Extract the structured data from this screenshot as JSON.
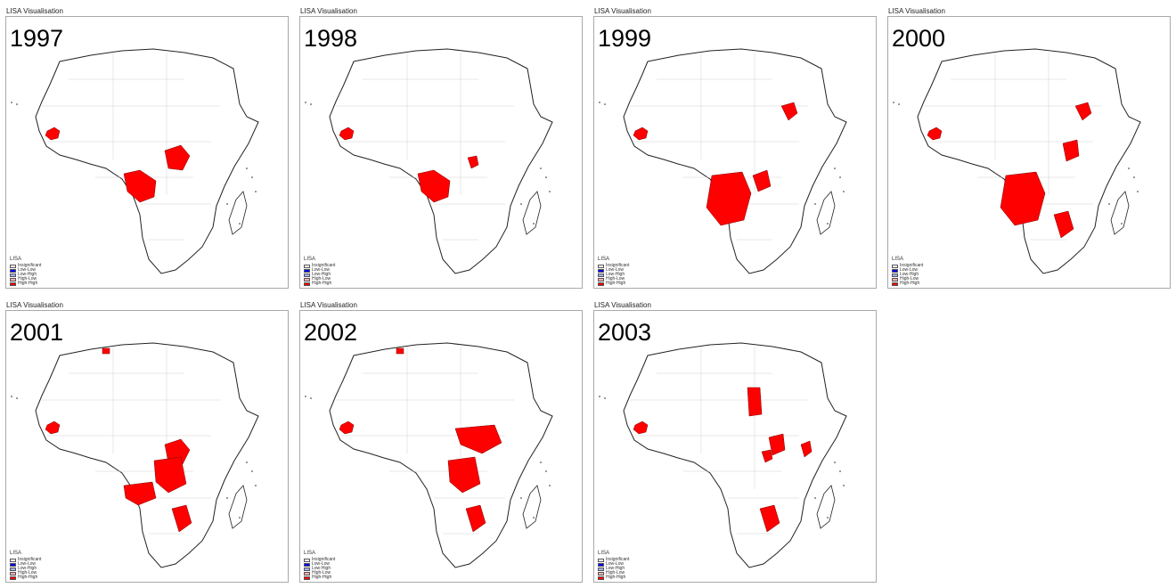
{
  "header_title": "LISA Visualisation",
  "legend": {
    "title": "LISA",
    "items": [
      {
        "label": "Insignificant",
        "color": "#ffffff"
      },
      {
        "label": "Low-Low",
        "color": "#0000ff"
      },
      {
        "label": "Low-High",
        "color": "#a7adf9"
      },
      {
        "label": "High-Low",
        "color": "#f4adad"
      },
      {
        "label": "High-High",
        "color": "#ff0000"
      }
    ]
  },
  "panels": [
    {
      "title": "LISA Visualisation",
      "year": "1997",
      "hotspots": [
        "west-coast",
        "central-west",
        "central-north"
      ]
    },
    {
      "title": "LISA Visualisation",
      "year": "1998",
      "hotspots": [
        "west-coast",
        "central-west",
        "central-small"
      ]
    },
    {
      "title": "LISA Visualisation",
      "year": "1999",
      "hotspots": [
        "west-coast",
        "horn",
        "central-large",
        "central-east"
      ]
    },
    {
      "title": "LISA Visualisation",
      "year": "2000",
      "hotspots": [
        "west-coast",
        "horn",
        "central-large",
        "east-africa",
        "southeast"
      ]
    },
    {
      "title": "LISA Visualisation",
      "year": "2001",
      "hotspots": [
        "west-coast",
        "north-coast",
        "central-north",
        "central-mid",
        "angola",
        "southeast"
      ]
    },
    {
      "title": "LISA Visualisation",
      "year": "2002",
      "hotspots": [
        "west-coast",
        "north-coast",
        "sudan-east",
        "central-mid",
        "southeast"
      ]
    },
    {
      "title": "LISA Visualisation",
      "year": "2003",
      "hotspots": [
        "west-coast",
        "sudan-west",
        "east-africa",
        "horn-south",
        "central-small",
        "southeast"
      ]
    }
  ],
  "colors": {
    "high_high": "#ff0000",
    "outline": "#222222",
    "border": "#a9a9a9"
  }
}
